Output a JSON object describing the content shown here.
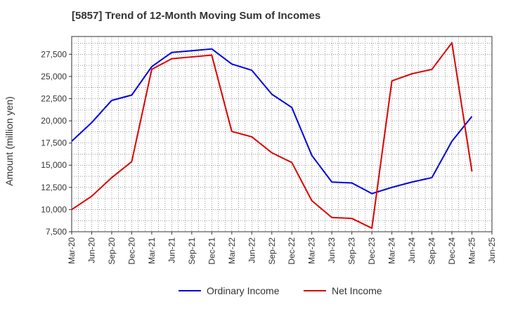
{
  "chart_data": {
    "type": "line",
    "title": "[5857]  Trend of 12-Month Moving Sum of Incomes",
    "xlabel": "",
    "ylabel": "Amount (million yen)",
    "ylim": [
      7500,
      29500
    ],
    "yticks": [
      7500,
      10000,
      12500,
      15000,
      17500,
      20000,
      22500,
      25000,
      27500
    ],
    "ytick_labels": [
      "7,500",
      "10,000",
      "12,500",
      "15,000",
      "17,500",
      "20,000",
      "22,500",
      "25,000",
      "27,500"
    ],
    "categories": [
      "Mar-20",
      "Jun-20",
      "Sep-20",
      "Dec-20",
      "Mar-21",
      "Jun-21",
      "Sep-21",
      "Dec-21",
      "Mar-22",
      "Jun-22",
      "Sep-22",
      "Dec-22",
      "Mar-23",
      "Jun-23",
      "Sep-23",
      "Dec-23",
      "Mar-24",
      "Jun-24",
      "Sep-24",
      "Dec-24",
      "Mar-25",
      "Jun-25"
    ],
    "grid": true,
    "legend_position": "bottom",
    "series": [
      {
        "name": "Ordinary Income",
        "color": "#0000dd",
        "values": [
          17700,
          19800,
          22300,
          22900,
          26100,
          27700,
          27900,
          28100,
          26400,
          25700,
          23000,
          21500,
          16100,
          13100,
          13000,
          11800,
          12500,
          13100,
          13600,
          17700,
          20500,
          null
        ]
      },
      {
        "name": "Net Income",
        "color": "#dd0000",
        "values": [
          10000,
          11500,
          13600,
          15400,
          25800,
          27000,
          27200,
          27400,
          18800,
          18200,
          16400,
          15300,
          11000,
          9100,
          9000,
          7900,
          24500,
          25300,
          25800,
          28800,
          14300,
          null
        ]
      }
    ]
  }
}
